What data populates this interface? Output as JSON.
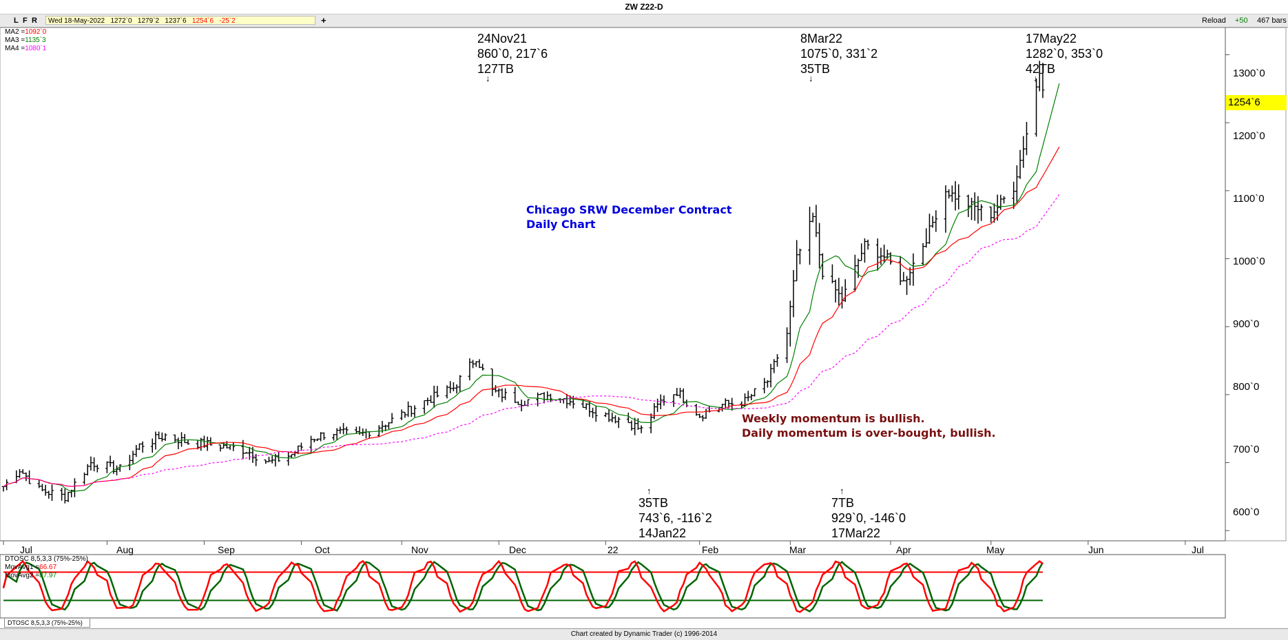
{
  "window": {
    "title": "ZW Z22-D"
  },
  "toolbar": {
    "buttons": [
      "L",
      "F",
      "R"
    ],
    "quote": {
      "date": "Wed 18-May-2022",
      "open": "1272`0",
      "high": "1279`2",
      "low": "1237`6",
      "close": "1254`6",
      "change": "-25`2"
    },
    "plus_label": "+",
    "reload_label": "Reload",
    "increment_label": "+50",
    "bars_label": "467 bars"
  },
  "legend": {
    "ma_lines": [
      {
        "label": "MA2 =",
        "value": "1092`0",
        "color": "#ff0000"
      },
      {
        "label": "MA3 =",
        "value": "1135`3",
        "color": "#008000"
      },
      {
        "label": "MA4 =",
        "value": "1080`1",
        "color": "#ff00ff"
      }
    ],
    "osc_title": "DTOSC 8,5,3,3 (75%-25%)",
    "osc_lines": [
      {
        "label": "MovAvg1 =",
        "value": "66.67",
        "color": "#ff0000"
      },
      {
        "label": "MovAvg2 =",
        "value": "87.97",
        "color": "#008000"
      }
    ]
  },
  "annotations": {
    "top": [
      {
        "date": "24Nov21",
        "values": "860`0, 217`6",
        "tb": "127TB"
      },
      {
        "date": "8Mar22",
        "values": "1075`0, 331`2",
        "tb": "35TB"
      },
      {
        "date": "17May22",
        "values": "1282`0, 353`0",
        "tb": "42TB"
      }
    ],
    "bottom": [
      {
        "tb": "35TB",
        "values": "743`6, -116`2",
        "date": "14Jan22"
      },
      {
        "tb": "7TB",
        "values": "929`0, -146`0",
        "date": "17Mar22"
      }
    ],
    "arrow_down": "↓",
    "arrow_up": "↑"
  },
  "notes": {
    "contract": [
      "Chicago SRW December Contract",
      "Daily Chart"
    ],
    "momentum": [
      "Weekly momentum is bullish.",
      "Daily momentum is over-bought, bullish."
    ]
  },
  "price_axis": {
    "labels": [
      "1300`0",
      "1200`0",
      "1100`0",
      "1000`0",
      "900`0",
      "800`0",
      "700`0",
      "600`0"
    ],
    "current": "1254`6"
  },
  "time_axis": {
    "labels": [
      "Jul",
      "Aug",
      "Sep",
      "Oct",
      "Nov",
      "Dec",
      "22",
      "Feb",
      "Mar",
      "Apr",
      "May",
      "Jun",
      "Jul"
    ]
  },
  "osc_tab_label": "DTOSC 8,5,3,3 (75%-25%)",
  "footer": {
    "text": "Chart created by Dynamic Trader  (c) 1996-2014"
  },
  "colors": {
    "bars": "#000000",
    "ma2": "#ff0000",
    "ma3": "#008000",
    "ma4": "#ff00ff",
    "osc_fast": "#ff0000",
    "osc_slow": "#006400",
    "highlight": "#ffff00"
  },
  "chart_data": {
    "type": "ohlc-bar",
    "ylim": [
      585,
      1340
    ],
    "osc_ylim": [
      0,
      100
    ],
    "osc_levels": [
      75,
      25
    ],
    "moving_averages": [
      "MA2",
      "MA3",
      "MA4"
    ],
    "price_path": [
      {
        "date": "2021-07-01",
        "close": 665
      },
      {
        "date": "2021-07-06",
        "close": 690
      },
      {
        "date": "2021-07-12",
        "close": 660
      },
      {
        "date": "2021-07-20",
        "close": 650
      },
      {
        "date": "2021-07-28",
        "close": 700
      },
      {
        "date": "2021-08-06",
        "close": 690
      },
      {
        "date": "2021-08-12",
        "close": 725
      },
      {
        "date": "2021-08-20",
        "close": 740
      },
      {
        "date": "2021-08-27",
        "close": 730
      },
      {
        "date": "2021-09-06",
        "close": 725
      },
      {
        "date": "2021-09-14",
        "close": 718
      },
      {
        "date": "2021-09-21",
        "close": 700
      },
      {
        "date": "2021-09-28",
        "close": 712
      },
      {
        "date": "2021-10-04",
        "close": 735
      },
      {
        "date": "2021-10-10",
        "close": 745
      },
      {
        "date": "2021-10-19",
        "close": 740
      },
      {
        "date": "2021-10-28",
        "close": 760
      },
      {
        "date": "2021-11-08",
        "close": 790
      },
      {
        "date": "2021-11-17",
        "close": 810
      },
      {
        "date": "2021-11-24",
        "close": 855
      },
      {
        "date": "2021-11-29",
        "close": 805
      },
      {
        "date": "2021-12-08",
        "close": 790
      },
      {
        "date": "2021-12-17",
        "close": 800
      },
      {
        "date": "2021-12-24",
        "close": 790
      },
      {
        "date": "2022-01-03",
        "close": 770
      },
      {
        "date": "2022-01-10",
        "close": 760
      },
      {
        "date": "2022-01-14",
        "close": 748
      },
      {
        "date": "2022-01-20",
        "close": 790
      },
      {
        "date": "2022-01-25",
        "close": 805
      },
      {
        "date": "2022-02-01",
        "close": 770
      },
      {
        "date": "2022-02-08",
        "close": 785
      },
      {
        "date": "2022-02-15",
        "close": 790
      },
      {
        "date": "2022-02-22",
        "close": 820
      },
      {
        "date": "2022-02-28",
        "close": 890
      },
      {
        "date": "2022-03-03",
        "close": 1000
      },
      {
        "date": "2022-03-08",
        "close": 1060
      },
      {
        "date": "2022-03-11",
        "close": 980
      },
      {
        "date": "2022-03-17",
        "close": 940
      },
      {
        "date": "2022-03-24",
        "close": 1020
      },
      {
        "date": "2022-03-31",
        "close": 1000
      },
      {
        "date": "2022-04-05",
        "close": 965
      },
      {
        "date": "2022-04-12",
        "close": 1030
      },
      {
        "date": "2022-04-18",
        "close": 1100
      },
      {
        "date": "2022-04-25",
        "close": 1080
      },
      {
        "date": "2022-05-02",
        "close": 1065
      },
      {
        "date": "2022-05-09",
        "close": 1105
      },
      {
        "date": "2022-05-13",
        "close": 1185
      },
      {
        "date": "2022-05-17",
        "close": 1275
      },
      {
        "date": "2022-05-18",
        "close": 1254.75
      }
    ]
  }
}
